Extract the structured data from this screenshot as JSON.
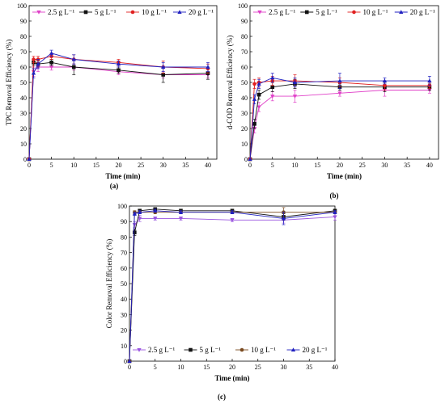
{
  "chart_data": [
    {
      "id": "a",
      "type": "line",
      "caption": "(a)",
      "xlabel": "Time (min)",
      "ylabel": "TPC Removal Efficiency (%)",
      "xlim": [
        0,
        42
      ],
      "ylim": [
        0,
        100
      ],
      "xticks": [
        0,
        5,
        10,
        15,
        20,
        25,
        30,
        35,
        40
      ],
      "yticks": [
        0,
        10,
        20,
        30,
        40,
        50,
        60,
        70,
        80,
        90,
        100
      ],
      "legend_position": "top",
      "series": [
        {
          "name": "2.5 g L⁻¹",
          "color": "#e040c8",
          "marker": "triangle-down",
          "x": [
            0,
            1,
            2,
            5,
            10,
            20,
            30,
            40
          ],
          "y": [
            0,
            57,
            60,
            60,
            60,
            57,
            55,
            55
          ],
          "err": [
            0,
            3,
            3,
            2,
            2,
            2,
            2,
            2
          ]
        },
        {
          "name": "5 g L⁻¹",
          "color": "#111111",
          "marker": "square",
          "x": [
            0,
            1,
            2,
            5,
            10,
            20,
            30,
            40
          ],
          "y": [
            0,
            63,
            62,
            63,
            60,
            58,
            55,
            56
          ],
          "err": [
            0,
            2,
            2,
            2,
            5,
            2,
            5,
            4
          ]
        },
        {
          "name": "10 g L⁻¹",
          "color": "#e02020",
          "marker": "circle",
          "x": [
            0,
            1,
            2,
            5,
            10,
            20,
            30,
            40
          ],
          "y": [
            0,
            65,
            65,
            67,
            65,
            63,
            60,
            59
          ],
          "err": [
            0,
            2,
            2,
            2,
            3,
            2,
            4,
            3
          ]
        },
        {
          "name": "20 g L⁻¹",
          "color": "#2020c0",
          "marker": "triangle-up",
          "x": [
            0,
            1,
            2,
            5,
            10,
            20,
            30,
            40
          ],
          "y": [
            0,
            56,
            62,
            69,
            65,
            62,
            60,
            60
          ],
          "err": [
            0,
            3,
            3,
            2,
            3,
            2,
            3,
            3
          ]
        }
      ]
    },
    {
      "id": "b",
      "type": "line",
      "caption": "(b)",
      "xlabel": "Time (min)",
      "ylabel": "d-COD Removal Efficiency (%)",
      "xlim": [
        0,
        42
      ],
      "ylim": [
        0,
        100
      ],
      "xticks": [
        0,
        5,
        10,
        15,
        20,
        25,
        30,
        35,
        40
      ],
      "yticks": [
        0,
        10,
        20,
        30,
        40,
        50,
        60,
        70,
        80,
        90,
        100
      ],
      "legend_position": "top",
      "series": [
        {
          "name": "2.5 g L⁻¹",
          "color": "#e040c8",
          "marker": "triangle-down",
          "x": [
            0,
            1,
            2,
            5,
            10,
            20,
            30,
            40
          ],
          "y": [
            0,
            20,
            34,
            41,
            41,
            43,
            45,
            45
          ],
          "err": [
            0,
            3,
            3,
            3,
            4,
            2,
            4,
            2
          ]
        },
        {
          "name": "5 g L⁻¹",
          "color": "#111111",
          "marker": "square",
          "x": [
            0,
            1,
            2,
            5,
            10,
            20,
            30,
            40
          ],
          "y": [
            0,
            23,
            42,
            47,
            49,
            47,
            47,
            47
          ],
          "err": [
            0,
            3,
            3,
            3,
            3,
            2,
            3,
            2
          ]
        },
        {
          "name": "10 g L⁻¹",
          "color": "#e02020",
          "marker": "circle",
          "x": [
            0,
            1,
            2,
            5,
            10,
            20,
            30,
            40
          ],
          "y": [
            0,
            49,
            50,
            51,
            51,
            50,
            48,
            48
          ],
          "err": [
            0,
            3,
            3,
            3,
            4,
            3,
            3,
            2
          ]
        },
        {
          "name": "20 g L⁻¹",
          "color": "#2020c0",
          "marker": "triangle-up",
          "x": [
            0,
            1,
            2,
            5,
            10,
            20,
            30,
            40
          ],
          "y": [
            0,
            39,
            49,
            53,
            50,
            51,
            51,
            51
          ],
          "err": [
            0,
            3,
            3,
            3,
            3,
            5,
            2,
            3
          ]
        }
      ]
    },
    {
      "id": "c",
      "type": "line",
      "caption": "(c)",
      "xlabel": "Time (min)",
      "ylabel": "Color Removal Efficiency (%)",
      "xlim": [
        0,
        40
      ],
      "ylim": [
        0,
        100
      ],
      "xticks": [
        0,
        5,
        10,
        15,
        20,
        25,
        30,
        35,
        40
      ],
      "yticks": [
        0,
        10,
        20,
        30,
        40,
        50,
        60,
        70,
        80,
        90,
        100
      ],
      "legend_position": "bottom",
      "series": [
        {
          "name": "2.5 g L⁻¹",
          "color": "#9a55e0",
          "marker": "triangle-down",
          "x": [
            0,
            1,
            2,
            5,
            10,
            20,
            30,
            40
          ],
          "y": [
            0,
            88,
            92,
            92,
            92,
            91,
            91,
            93
          ],
          "err": [
            0,
            2,
            2,
            1,
            1,
            1,
            2,
            2
          ]
        },
        {
          "name": "5 g L⁻¹",
          "color": "#111111",
          "marker": "square",
          "x": [
            0,
            1,
            2,
            5,
            10,
            20,
            30,
            40
          ],
          "y": [
            0,
            83,
            97,
            98,
            97,
            97,
            93,
            97
          ],
          "err": [
            0,
            2,
            1,
            1,
            1,
            1,
            2,
            1
          ]
        },
        {
          "name": "10 g L⁻¹",
          "color": "#7a4a20",
          "marker": "circle",
          "x": [
            0,
            1,
            2,
            5,
            10,
            20,
            30,
            40
          ],
          "y": [
            0,
            96,
            96,
            96,
            96,
            96,
            96,
            96
          ],
          "err": [
            0,
            1,
            1,
            1,
            1,
            1,
            3,
            1
          ]
        },
        {
          "name": "20 g L⁻¹",
          "color": "#2020c0",
          "marker": "triangle-up",
          "x": [
            0,
            1,
            2,
            5,
            10,
            20,
            30,
            40
          ],
          "y": [
            0,
            95,
            96,
            97,
            96,
            96,
            92,
            96
          ],
          "err": [
            0,
            1,
            1,
            1,
            1,
            1,
            4,
            1
          ]
        }
      ]
    }
  ]
}
